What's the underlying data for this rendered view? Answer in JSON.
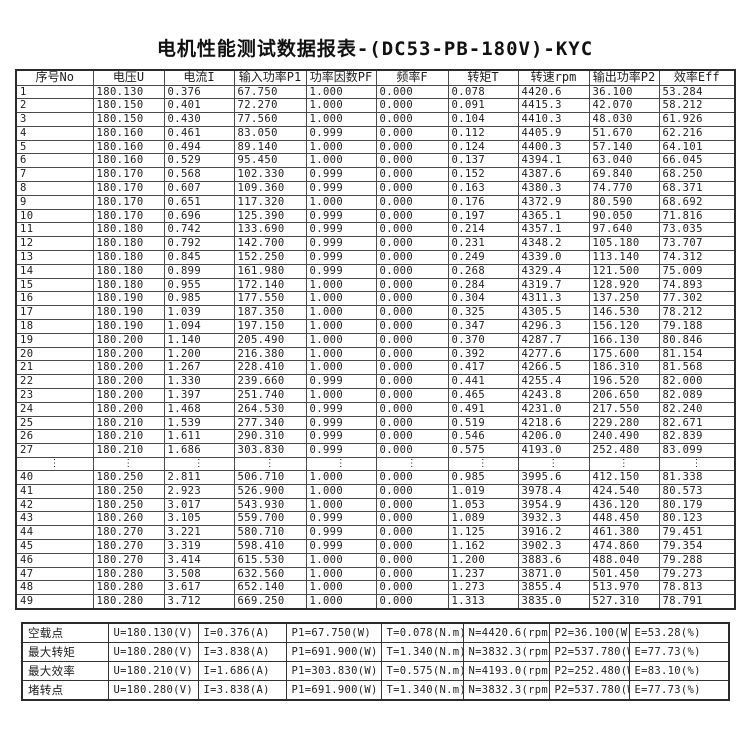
{
  "title": "电机性能测试数据报表-(DC53-PB-180V)-KYC",
  "main_table": {
    "headers": [
      "序号No",
      "电压U",
      "电流I",
      "输入功率P1",
      "功率因数PF",
      "频率F",
      "转矩T",
      "转速rpm",
      "输出功率P2",
      "效率Eff"
    ],
    "rows": [
      [
        "1",
        "180.130",
        "0.376",
        "67.750",
        "1.000",
        "0.000",
        "0.078",
        "4420.6",
        "36.100",
        "53.284"
      ],
      [
        "2",
        "180.150",
        "0.401",
        "72.270",
        "1.000",
        "0.000",
        "0.091",
        "4415.3",
        "42.070",
        "58.212"
      ],
      [
        "3",
        "180.150",
        "0.430",
        "77.560",
        "1.000",
        "0.000",
        "0.104",
        "4410.3",
        "48.030",
        "61.926"
      ],
      [
        "4",
        "180.160",
        "0.461",
        "83.050",
        "0.999",
        "0.000",
        "0.112",
        "4405.9",
        "51.670",
        "62.216"
      ],
      [
        "5",
        "180.160",
        "0.494",
        "89.140",
        "1.000",
        "0.000",
        "0.124",
        "4400.3",
        "57.140",
        "64.101"
      ],
      [
        "6",
        "180.160",
        "0.529",
        "95.450",
        "1.000",
        "0.000",
        "0.137",
        "4394.1",
        "63.040",
        "66.045"
      ],
      [
        "7",
        "180.170",
        "0.568",
        "102.330",
        "0.999",
        "0.000",
        "0.152",
        "4387.6",
        "69.840",
        "68.250"
      ],
      [
        "8",
        "180.170",
        "0.607",
        "109.360",
        "0.999",
        "0.000",
        "0.163",
        "4380.3",
        "74.770",
        "68.371"
      ],
      [
        "9",
        "180.170",
        "0.651",
        "117.320",
        "1.000",
        "0.000",
        "0.176",
        "4372.9",
        "80.590",
        "68.692"
      ],
      [
        "10",
        "180.170",
        "0.696",
        "125.390",
        "0.999",
        "0.000",
        "0.197",
        "4365.1",
        "90.050",
        "71.816"
      ],
      [
        "11",
        "180.180",
        "0.742",
        "133.690",
        "0.999",
        "0.000",
        "0.214",
        "4357.1",
        "97.640",
        "73.035"
      ],
      [
        "12",
        "180.180",
        "0.792",
        "142.700",
        "0.999",
        "0.000",
        "0.231",
        "4348.2",
        "105.180",
        "73.707"
      ],
      [
        "13",
        "180.180",
        "0.845",
        "152.250",
        "0.999",
        "0.000",
        "0.249",
        "4339.0",
        "113.140",
        "74.312"
      ],
      [
        "14",
        "180.180",
        "0.899",
        "161.980",
        "0.999",
        "0.000",
        "0.268",
        "4329.4",
        "121.500",
        "75.009"
      ],
      [
        "15",
        "180.180",
        "0.955",
        "172.140",
        "1.000",
        "0.000",
        "0.284",
        "4319.7",
        "128.920",
        "74.893"
      ],
      [
        "16",
        "180.190",
        "0.985",
        "177.550",
        "1.000",
        "0.000",
        "0.304",
        "4311.3",
        "137.250",
        "77.302"
      ],
      [
        "17",
        "180.190",
        "1.039",
        "187.350",
        "1.000",
        "0.000",
        "0.325",
        "4305.5",
        "146.530",
        "78.212"
      ],
      [
        "18",
        "180.190",
        "1.094",
        "197.150",
        "1.000",
        "0.000",
        "0.347",
        "4296.3",
        "156.120",
        "79.188"
      ],
      [
        "19",
        "180.200",
        "1.140",
        "205.490",
        "1.000",
        "0.000",
        "0.370",
        "4287.7",
        "166.130",
        "80.846"
      ],
      [
        "20",
        "180.200",
        "1.200",
        "216.380",
        "1.000",
        "0.000",
        "0.392",
        "4277.6",
        "175.600",
        "81.154"
      ],
      [
        "21",
        "180.200",
        "1.267",
        "228.410",
        "1.000",
        "0.000",
        "0.417",
        "4266.5",
        "186.310",
        "81.568"
      ],
      [
        "22",
        "180.200",
        "1.330",
        "239.660",
        "0.999",
        "0.000",
        "0.441",
        "4255.4",
        "196.520",
        "82.000"
      ],
      [
        "23",
        "180.200",
        "1.397",
        "251.740",
        "1.000",
        "0.000",
        "0.465",
        "4243.8",
        "206.650",
        "82.089"
      ],
      [
        "24",
        "180.200",
        "1.468",
        "264.530",
        "0.999",
        "0.000",
        "0.491",
        "4231.0",
        "217.550",
        "82.240"
      ],
      [
        "25",
        "180.210",
        "1.539",
        "277.340",
        "0.999",
        "0.000",
        "0.519",
        "4218.6",
        "229.280",
        "82.671"
      ],
      [
        "26",
        "180.210",
        "1.611",
        "290.310",
        "0.999",
        "0.000",
        "0.546",
        "4206.0",
        "240.490",
        "82.839"
      ],
      [
        "27",
        "180.210",
        "1.686",
        "303.830",
        "0.999",
        "0.000",
        "0.575",
        "4193.0",
        "252.480",
        "83.099"
      ],
      [
        "⋮",
        "⋮",
        "⋮",
        "⋮",
        "⋮",
        "⋮",
        "⋮",
        "⋮",
        "⋮",
        "⋮"
      ],
      [
        "40",
        "180.250",
        "2.811",
        "506.710",
        "1.000",
        "0.000",
        "0.985",
        "3995.6",
        "412.150",
        "81.338"
      ],
      [
        "41",
        "180.250",
        "2.923",
        "526.900",
        "1.000",
        "0.000",
        "1.019",
        "3978.4",
        "424.540",
        "80.573"
      ],
      [
        "42",
        "180.250",
        "3.017",
        "543.930",
        "1.000",
        "0.000",
        "1.053",
        "3954.9",
        "436.120",
        "80.179"
      ],
      [
        "43",
        "180.260",
        "3.105",
        "559.700",
        "0.999",
        "0.000",
        "1.089",
        "3932.3",
        "448.450",
        "80.123"
      ],
      [
        "44",
        "180.270",
        "3.221",
        "580.710",
        "0.999",
        "0.000",
        "1.125",
        "3916.2",
        "461.380",
        "79.451"
      ],
      [
        "45",
        "180.270",
        "3.319",
        "598.410",
        "0.999",
        "0.000",
        "1.162",
        "3902.3",
        "474.860",
        "79.354"
      ],
      [
        "46",
        "180.270",
        "3.414",
        "615.530",
        "1.000",
        "0.000",
        "1.200",
        "3883.6",
        "488.040",
        "79.288"
      ],
      [
        "47",
        "180.280",
        "3.508",
        "632.560",
        "1.000",
        "0.000",
        "1.237",
        "3871.0",
        "501.450",
        "79.273"
      ],
      [
        "48",
        "180.280",
        "3.617",
        "652.140",
        "1.000",
        "0.000",
        "1.273",
        "3855.4",
        "513.970",
        "78.813"
      ],
      [
        "49",
        "180.280",
        "3.712",
        "669.250",
        "1.000",
        "0.000",
        "1.313",
        "3835.0",
        "527.310",
        "78.791"
      ]
    ]
  },
  "summary_table": {
    "rows": [
      {
        "label": "空载点",
        "cells": [
          "U=180.130(V)",
          "I=0.376(A)",
          "P1=67.750(W)",
          "T=0.078(N.m)",
          "N=4420.6(rpm)",
          "P2=36.100(W)",
          "E=53.28(%)"
        ]
      },
      {
        "label": "最大转矩",
        "cells": [
          "U=180.280(V)",
          "I=3.838(A)",
          "P1=691.900(W)",
          "T=1.340(N.m)",
          "N=3832.3(rpm)",
          "P2=537.780(W)",
          "E=77.73(%)"
        ]
      },
      {
        "label": "最大效率",
        "cells": [
          "U=180.210(V)",
          "I=1.686(A)",
          "P1=303.830(W)",
          "T=0.575(N.m)",
          "N=4193.0(rpm)",
          "P2=252.480(W)",
          "E=83.10(%)"
        ]
      },
      {
        "label": "堵转点",
        "cells": [
          "U=180.280(V)",
          "I=3.838(A)",
          "P1=691.900(W)",
          "T=1.340(N.m)",
          "N=3832.3(rpm)",
          "P2=537.780(W)",
          "E=77.73(%)"
        ]
      }
    ]
  }
}
